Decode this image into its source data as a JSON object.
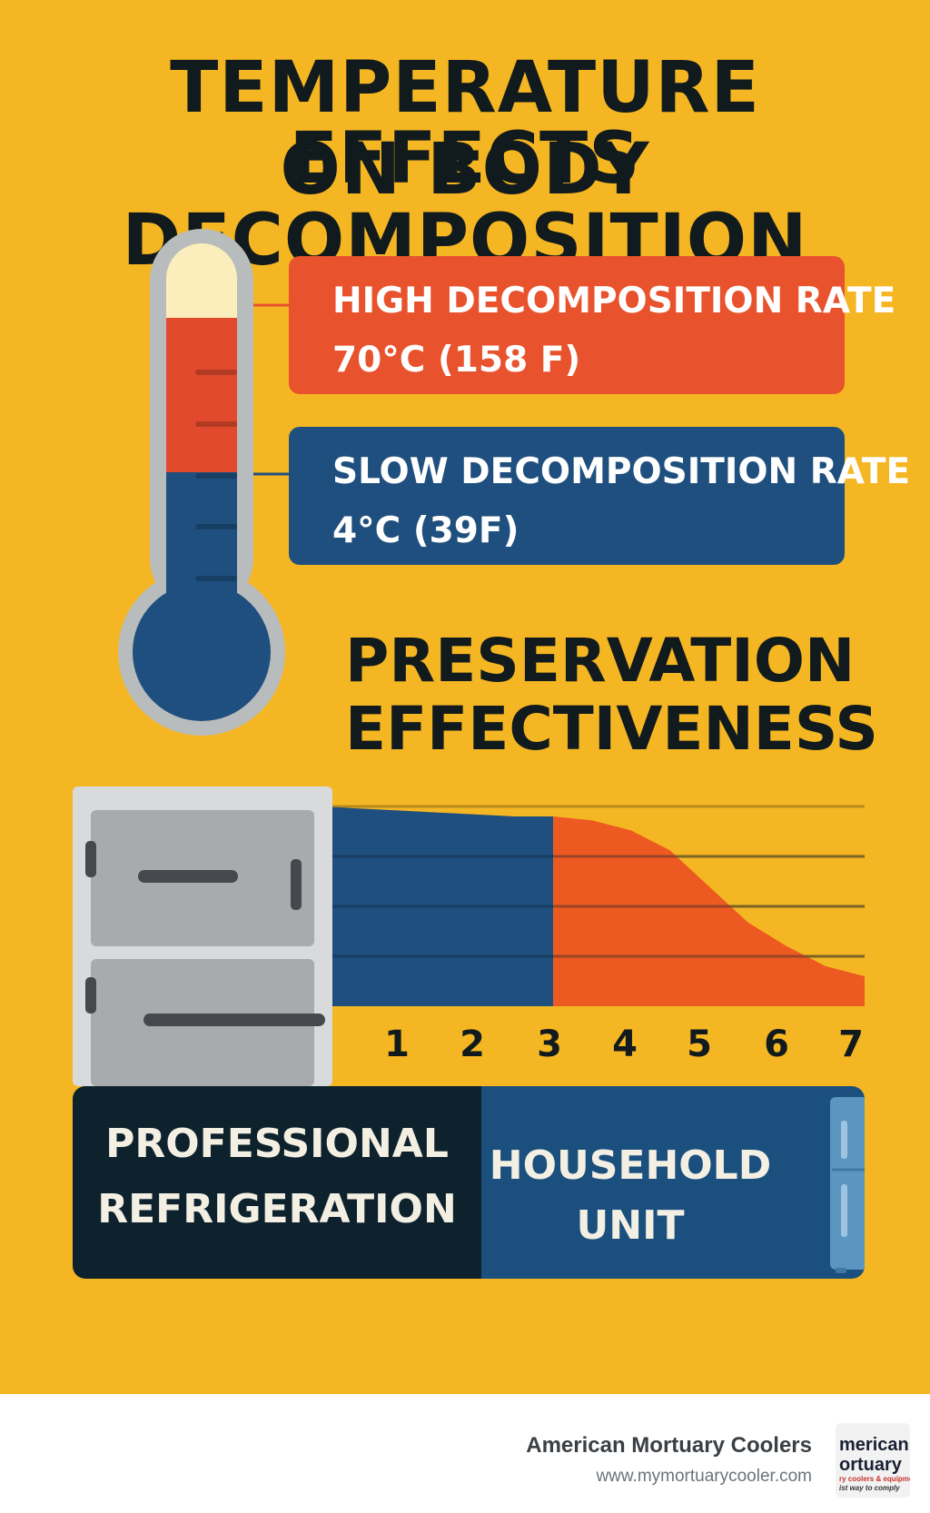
{
  "title": {
    "line1": "TEMPERATURE EFFECTS",
    "line2": "ON BODY DECOMPOSITION"
  },
  "thermometer": {
    "high": {
      "line1": "HIGH DECOMPOSITION RATE",
      "line2": "70°C (158 F)",
      "color": "#e8522c"
    },
    "slow": {
      "line1": "SLOW DECOMPOSITION RATE",
      "line2": "4°C (39F)",
      "color": "#1f4f7e"
    }
  },
  "section_title": {
    "line1": "PRESERVATION",
    "line2": "EFFECTIVENESS"
  },
  "chart_data": {
    "type": "area",
    "title": "PRESERVATION EFFECTIVENESS",
    "x": [
      1,
      2,
      3,
      4,
      5,
      6,
      7
    ],
    "tick_labels": [
      "1",
      "2",
      "3",
      "4",
      "5",
      "6",
      "7"
    ],
    "series": [
      {
        "color": "#1f4f7e",
        "x": [
          0,
          0.5,
          1,
          1.5,
          2,
          2.5,
          3
        ],
        "values": [
          1.0,
          0.99,
          0.98,
          0.97,
          0.96,
          0.95,
          0.95
        ]
      },
      {
        "color": "#ec5a21",
        "x": [
          3,
          3.5,
          4,
          4.5,
          5,
          5.5,
          6,
          6.5,
          7
        ],
        "values": [
          0.95,
          0.93,
          0.88,
          0.78,
          0.6,
          0.42,
          0.3,
          0.2,
          0.15
        ]
      }
    ],
    "xlim": [
      0,
      7
    ],
    "ylim": [
      0,
      1
    ],
    "grid": true
  },
  "bottom": {
    "professional": {
      "line1": "PROFESSIONAL",
      "line2": "REFRIGERATION"
    },
    "household": {
      "line1": "HOUSEHOLD",
      "line2": "UNIT"
    }
  },
  "footer": {
    "brand": "American Mortuary Coolers",
    "url": "www.mymortuarycooler.com",
    "logo": {
      "line1": "merican",
      "line2": "ortuary",
      "line3": "ry coolers & equipment",
      "line4": "ist way to comply"
    }
  },
  "colors": {
    "background": "#f5b623",
    "dark_text": "#111a1c",
    "red": "#e8522c",
    "blue": "#1f4f7e",
    "navy": "#0e222d"
  }
}
